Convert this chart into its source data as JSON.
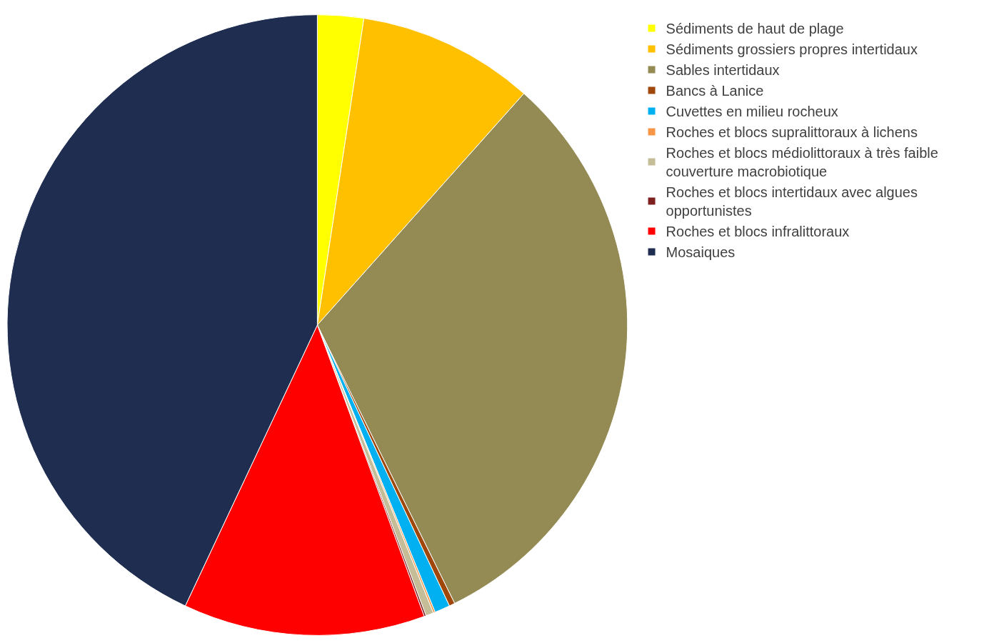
{
  "chart_data": {
    "type": "pie",
    "categories": [
      "Sédiments de haut de plage",
      "Sédiments grossiers propres intertidaux",
      "Sables intertidaux",
      "Bancs à Lanice",
      "Cuvettes en milieu rocheux",
      "Roches et blocs supralittoraux à lichens",
      "Roches et blocs médiolittoraux à très faible couverture macrobiotique",
      "Roches et blocs intertidaux avec algues opportunistes",
      "Roches et blocs infralittoraux",
      "Mosaiques"
    ],
    "values": [
      2.4,
      9.2,
      31.1,
      0.3,
      0.8,
      0.1,
      0.4,
      0.1,
      12.6,
      43.0
    ],
    "colors": [
      "#ffff00",
      "#ffc000",
      "#948a54",
      "#a0480c",
      "#00b0f0",
      "#f79646",
      "#c4bd97",
      "#7f2020",
      "#ff0000",
      "#1f2d50"
    ],
    "legend": "right"
  }
}
